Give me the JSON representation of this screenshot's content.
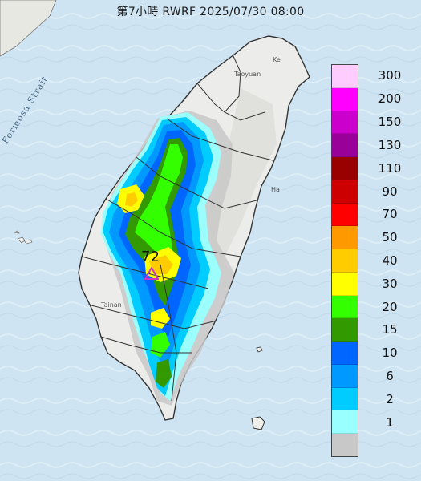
{
  "title": "第7小時  RWRF 2025/07/30 08:00",
  "station": {
    "value": "72",
    "marker_color": "#cc33cc"
  },
  "map_labels": {
    "strait": "Formosa Strait",
    "taoyuan": "Taoyuan",
    "tainan": "Tainan",
    "hualien_cut": "Ha",
    "keelung_cut": "Ke"
  },
  "legend": {
    "levels": [
      {
        "label": "300",
        "color": "#ffccff"
      },
      {
        "label": "200",
        "color": "#ff00ff"
      },
      {
        "label": "150",
        "color": "#cc00cc"
      },
      {
        "label": "130",
        "color": "#990099"
      },
      {
        "label": "110",
        "color": "#990000"
      },
      {
        "label": "90",
        "color": "#cc0000"
      },
      {
        "label": "70",
        "color": "#ff0000"
      },
      {
        "label": "50",
        "color": "#ff9900"
      },
      {
        "label": "40",
        "color": "#ffcc00"
      },
      {
        "label": "30",
        "color": "#ffff00"
      },
      {
        "label": "20",
        "color": "#33ff00"
      },
      {
        "label": "15",
        "color": "#339900"
      },
      {
        "label": "10",
        "color": "#0066ff"
      },
      {
        "label": "6",
        "color": "#0099ff"
      },
      {
        "label": "2",
        "color": "#00ccff"
      },
      {
        "label": "1",
        "color": "#99ffff"
      },
      {
        "label": "",
        "color": "#c8c8c8"
      }
    ]
  },
  "colors": {
    "sea": "#cfe4f2",
    "land": "#eeeeea",
    "border": "#333333"
  }
}
